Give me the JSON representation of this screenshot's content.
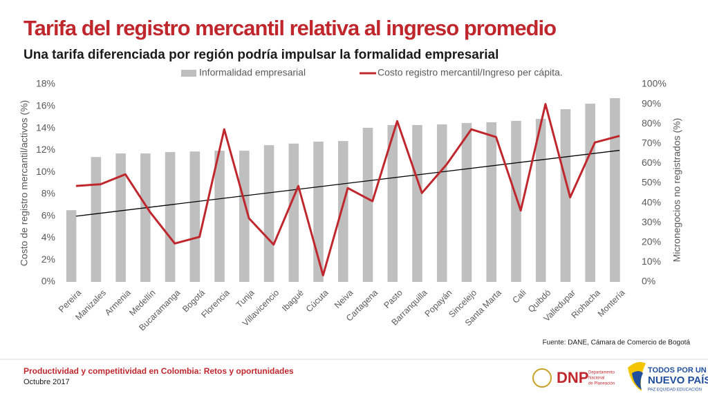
{
  "chart_data": {
    "type": "bar",
    "title": "Tarifa del registro mercantil relativa al ingreso promedio",
    "subtitle": "Una tarifa diferenciada por región podría impulsar la formalidad empresarial",
    "ylabel": "Costo de registro mercantil/activos (%)",
    "y2label": "Micronegocios no registrados (%)",
    "source": "Fuente: DANE, Cámara de Comercio de Bogotá",
    "categories": [
      "Pereira",
      "Manizales",
      "Armenia",
      "Medellín",
      "Bucaramanga",
      "Bogotá",
      "Florencia",
      "Tunja",
      "Villavicencio",
      "Ibagué",
      "Cúcuta",
      "Neiva",
      "Cartagena",
      "Pasto",
      "Barranquilla",
      "Popayán",
      "Sincelejo",
      "Santa Marta",
      "Cali",
      "Quibdó",
      "Valledupar",
      "Riohacha",
      "Montería"
    ],
    "series": [
      {
        "name": "Informalidad empresarial",
        "type": "bar",
        "axis": "y2",
        "color": "#bfbfbf",
        "values": [
          36.3,
          63.2,
          65,
          65,
          65.7,
          66,
          66.4,
          66.4,
          69.2,
          70,
          71,
          71.3,
          78,
          79.4,
          79.4,
          79.7,
          80.4,
          80.8,
          81.5,
          82.5,
          87.4,
          90.2,
          93
        ]
      },
      {
        "name": "Costo registro mercantil/Ingreso per cápita.",
        "type": "line",
        "axis": "y",
        "color": "#c0272d",
        "trendline": true,
        "values": [
          8.74,
          8.9,
          9.8,
          6.35,
          3.5,
          4.1,
          13.9,
          5.8,
          3.4,
          8.74,
          0.6,
          8.55,
          7.35,
          14.65,
          8.1,
          10.7,
          13.9,
          13.2,
          6.5,
          16.2,
          7.7,
          12.7,
          13.3
        ]
      }
    ],
    "ylim": [
      0,
      18
    ],
    "yticks": [
      {
        "value": 0,
        "label": "0%"
      },
      {
        "value": 2,
        "label": "2%"
      },
      {
        "value": 4,
        "label": "4%"
      },
      {
        "value": 6,
        "label": "6%"
      },
      {
        "value": 8,
        "label": "8%"
      },
      {
        "value": 10,
        "label": "10%"
      },
      {
        "value": 12,
        "label": "12%"
      },
      {
        "value": 14,
        "label": "14%"
      },
      {
        "value": 16,
        "label": "16%"
      },
      {
        "value": 18,
        "label": "18%"
      }
    ],
    "y2lim": [
      0,
      100
    ],
    "y2ticks": [
      {
        "value": 0,
        "label": "0%"
      },
      {
        "value": 10,
        "label": "10%"
      },
      {
        "value": 20,
        "label": "20%"
      },
      {
        "value": 30,
        "label": "30%"
      },
      {
        "value": 40,
        "label": "40%"
      },
      {
        "value": 50,
        "label": "50%"
      },
      {
        "value": 60,
        "label": "60%"
      },
      {
        "value": 70,
        "label": "70%"
      },
      {
        "value": 80,
        "label": "80%"
      },
      {
        "value": 90,
        "label": "90%"
      },
      {
        "value": 100,
        "label": "100%"
      }
    ],
    "grid": false,
    "legend": "top"
  },
  "footer": {
    "title": "Productividad y competitividad en Colombia: Retos y oportunidades",
    "date": "Octubre 2017",
    "logo1": "DNP",
    "logo1_sub": [
      "Departamento",
      "Nacional",
      "de Planeación"
    ],
    "logo2": [
      "TODOS POR UN",
      "NUEVO PAÍS"
    ],
    "logo2_sub": "PAZ  EQUIDAD  EDUCACIÓN"
  }
}
